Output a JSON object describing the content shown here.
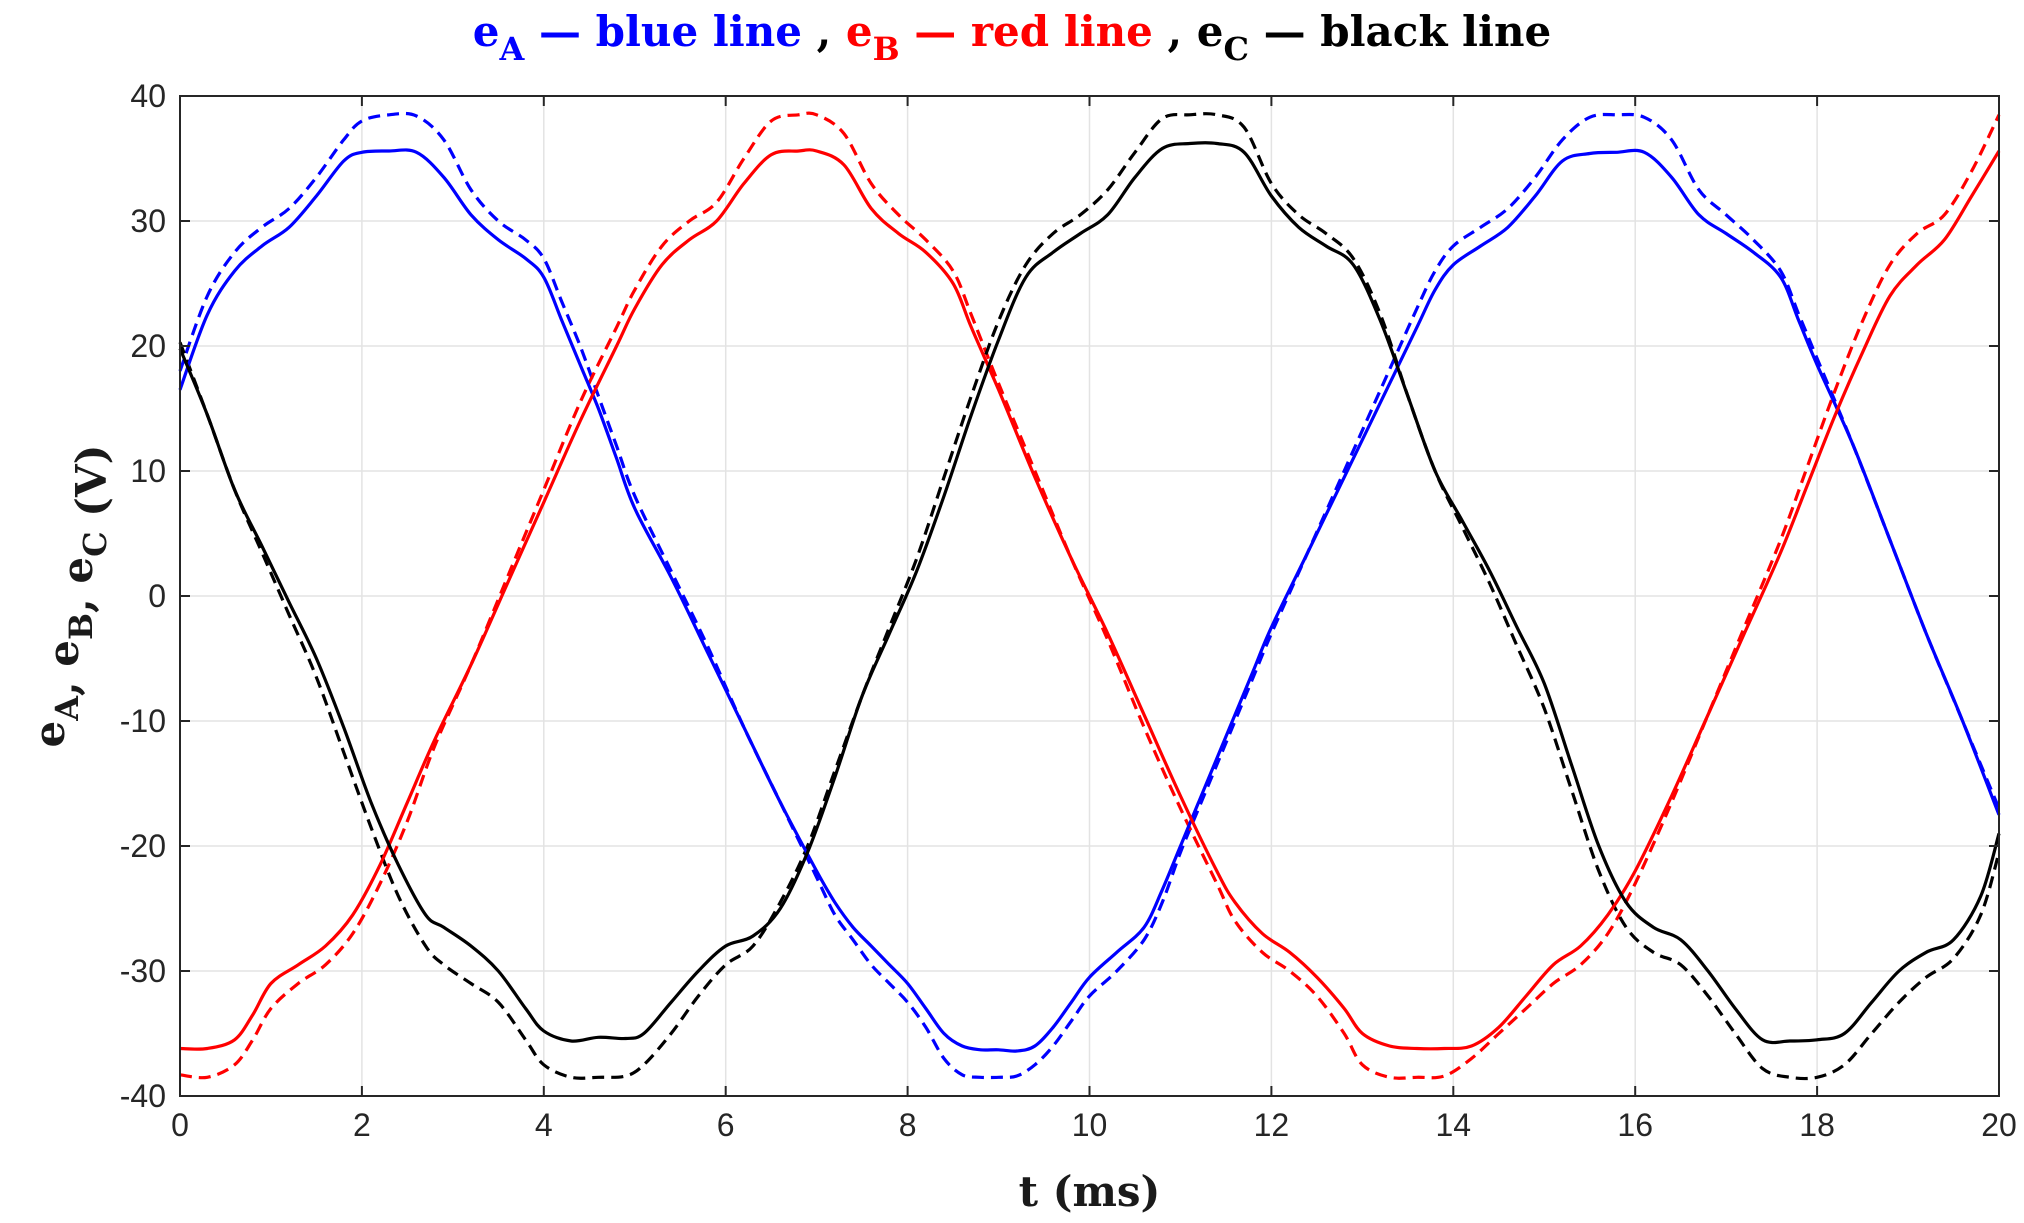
{
  "chart_data": {
    "type": "line",
    "title_parts": [
      {
        "text": "e",
        "sub": "A",
        "suffix": " — blue line",
        "color": "#0000ff"
      },
      {
        "sep": " , "
      },
      {
        "text": "e",
        "sub": "B",
        "suffix": " — red line",
        "color": "#ff0000"
      },
      {
        "sep": " , "
      },
      {
        "text": "e",
        "sub": "C",
        "suffix": " — black line",
        "color": "#000000"
      }
    ],
    "xlabel": "t (ms)",
    "ylabel_parts": [
      {
        "text": "e",
        "sub": "A"
      },
      {
        "sep": ", "
      },
      {
        "text": "e",
        "sub": "B"
      },
      {
        "sep": ", "
      },
      {
        "text": "e",
        "sub": "C"
      },
      {
        "sep": " (V)"
      }
    ],
    "xlim": [
      0,
      20
    ],
    "ylim": [
      -40,
      40
    ],
    "xticks": [
      0,
      2,
      4,
      6,
      8,
      10,
      12,
      14,
      16,
      18,
      20
    ],
    "yticks": [
      -40,
      -30,
      -20,
      -10,
      0,
      10,
      20,
      30,
      40
    ],
    "xtick_labels": [
      "0",
      "2",
      "4",
      "6",
      "8",
      "10",
      "12",
      "14",
      "16",
      "18",
      "20"
    ],
    "ytick_labels": [
      "-40",
      "-30",
      "-20",
      "-10",
      "0",
      "10",
      "20",
      "30",
      "40"
    ],
    "grid": true,
    "series": [
      {
        "phase": "A",
        "style": "solid",
        "color": "#0000ff",
        "x": [
          0,
          0.3,
          0.6,
          0.9,
          1.2,
          1.5,
          1.8,
          2.0,
          2.3,
          2.6,
          2.9,
          3.2,
          3.5,
          3.8,
          4.0,
          4.2,
          4.4,
          4.6,
          4.8,
          5.0,
          5.4,
          5.8,
          6.2,
          6.6,
          7.0,
          7.2,
          7.4,
          7.6,
          7.8,
          8.0,
          8.2,
          8.4,
          8.6,
          8.8,
          9.0,
          9.2,
          9.4,
          9.6,
          9.8,
          10.0,
          10.3,
          10.6,
          10.8,
          11.0,
          11.2,
          11.4,
          11.6,
          11.8,
          12.0,
          12.4,
          12.8,
          13.2,
          13.6,
          13.8,
          14.0,
          14.3,
          14.6,
          14.9,
          15.2,
          15.5,
          15.8,
          16.1,
          16.4,
          16.7,
          17.0,
          17.3,
          17.6,
          17.8,
          18.0,
          18.4,
          18.8,
          19.2,
          19.6,
          20.0
        ],
        "y": [
          16.5,
          22.5,
          26.0,
          28.0,
          29.5,
          32.0,
          34.8,
          35.5,
          35.6,
          35.5,
          33.5,
          30.5,
          28.5,
          27.0,
          25.5,
          22.0,
          18.5,
          15.0,
          11.0,
          7.0,
          1.5,
          -4.5,
          -10.5,
          -16.5,
          -22.0,
          -24.5,
          -26.5,
          -28.0,
          -29.5,
          -31.0,
          -33.0,
          -35.0,
          -36.0,
          -36.3,
          -36.3,
          -36.4,
          -36.0,
          -34.5,
          -32.5,
          -30.5,
          -28.5,
          -26.5,
          -23.5,
          -20.0,
          -16.5,
          -13.0,
          -9.5,
          -6.0,
          -2.5,
          3.5,
          9.5,
          15.5,
          21.5,
          24.5,
          26.5,
          28.0,
          29.5,
          32.0,
          34.8,
          35.4,
          35.5,
          35.5,
          33.5,
          30.5,
          29.0,
          27.5,
          25.5,
          22.0,
          18.5,
          12.0,
          4.5,
          -3.0,
          -10.0,
          -17.5
        ]
      },
      {
        "phase": "A",
        "style": "dashed",
        "color": "#0000ff",
        "x": [
          0,
          0.3,
          0.6,
          0.9,
          1.2,
          1.5,
          1.8,
          2.0,
          2.3,
          2.6,
          2.9,
          3.2,
          3.5,
          3.8,
          4.0,
          4.2,
          4.4,
          4.6,
          4.8,
          5.0,
          5.4,
          5.8,
          6.2,
          6.6,
          7.0,
          7.2,
          7.4,
          7.6,
          7.8,
          8.0,
          8.2,
          8.4,
          8.6,
          8.8,
          9.0,
          9.2,
          9.4,
          9.6,
          9.8,
          10.0,
          10.3,
          10.6,
          10.8,
          11.0,
          11.2,
          11.4,
          11.6,
          11.8,
          12.0,
          12.4,
          12.8,
          13.2,
          13.6,
          13.8,
          14.0,
          14.3,
          14.6,
          14.9,
          15.2,
          15.5,
          15.8,
          16.1,
          16.4,
          16.7,
          17.0,
          17.3,
          17.6,
          17.8,
          18.0,
          18.4,
          18.8,
          19.2,
          19.6,
          20.0
        ],
        "y": [
          18.0,
          24.0,
          27.5,
          29.5,
          31.0,
          33.5,
          36.5,
          38.0,
          38.5,
          38.4,
          36.5,
          32.5,
          30.0,
          28.5,
          27.0,
          23.5,
          20.0,
          16.0,
          12.0,
          8.0,
          2.0,
          -4.0,
          -10.5,
          -16.5,
          -22.5,
          -25.5,
          -27.5,
          -29.5,
          -31.0,
          -32.5,
          -34.5,
          -37.0,
          -38.3,
          -38.5,
          -38.5,
          -38.4,
          -37.5,
          -36.0,
          -34.0,
          -32.0,
          -30.0,
          -27.5,
          -24.5,
          -20.5,
          -17.0,
          -13.5,
          -10.0,
          -6.5,
          -3.0,
          3.5,
          10.0,
          16.5,
          23.0,
          26.0,
          28.0,
          29.5,
          31.0,
          33.5,
          36.5,
          38.3,
          38.5,
          38.3,
          36.5,
          32.5,
          30.5,
          28.5,
          26.0,
          22.5,
          19.0,
          12.0,
          4.5,
          -3.0,
          -10.0,
          -17.0
        ]
      },
      {
        "phase": "B",
        "style": "solid",
        "color": "#ff0000",
        "x": [
          0,
          0.3,
          0.6,
          0.8,
          1.0,
          1.3,
          1.6,
          1.9,
          2.2,
          2.5,
          2.8,
          3.2,
          3.6,
          4.0,
          4.4,
          4.8,
          5.0,
          5.3,
          5.6,
          5.9,
          6.2,
          6.5,
          6.8,
          7.0,
          7.3,
          7.6,
          7.9,
          8.2,
          8.5,
          8.7,
          9.0,
          9.4,
          9.8,
          10.2,
          10.6,
          11.0,
          11.4,
          11.6,
          11.9,
          12.2,
          12.5,
          12.8,
          13.0,
          13.3,
          13.6,
          13.9,
          14.2,
          14.5,
          14.8,
          15.1,
          15.4,
          15.7,
          16.0,
          16.4,
          16.8,
          17.2,
          17.6,
          17.9,
          18.2,
          18.5,
          18.8,
          19.1,
          19.4,
          19.7,
          20.0
        ],
        "y": [
          -36.2,
          -36.2,
          -35.5,
          -33.5,
          -31.0,
          -29.5,
          -28.0,
          -25.5,
          -21.5,
          -16.5,
          -11.5,
          -5.5,
          1.0,
          7.5,
          14.0,
          20.0,
          23.0,
          26.5,
          28.5,
          30.0,
          33.0,
          35.3,
          35.6,
          35.6,
          34.5,
          31.0,
          29.0,
          27.5,
          25.0,
          21.5,
          16.5,
          9.5,
          3.0,
          -3.0,
          -9.5,
          -16.0,
          -22.0,
          -24.5,
          -27.0,
          -28.5,
          -30.5,
          -33.0,
          -35.0,
          -36.0,
          -36.2,
          -36.2,
          -36.0,
          -34.5,
          -32.0,
          -29.5,
          -28.0,
          -25.5,
          -22.0,
          -16.0,
          -9.5,
          -3.0,
          3.5,
          9.0,
          14.5,
          19.5,
          24.0,
          26.5,
          28.5,
          32.0,
          35.6
        ]
      },
      {
        "phase": "B",
        "style": "dashed",
        "color": "#ff0000",
        "x": [
          0,
          0.3,
          0.6,
          0.8,
          1.0,
          1.3,
          1.6,
          1.9,
          2.2,
          2.5,
          2.8,
          3.2,
          3.6,
          4.0,
          4.4,
          4.8,
          5.0,
          5.3,
          5.6,
          5.9,
          6.2,
          6.5,
          6.8,
          7.0,
          7.3,
          7.6,
          7.9,
          8.2,
          8.5,
          8.7,
          9.0,
          9.4,
          9.8,
          10.2,
          10.6,
          11.0,
          11.4,
          11.6,
          11.9,
          12.2,
          12.5,
          12.8,
          13.0,
          13.3,
          13.6,
          13.9,
          14.2,
          14.5,
          14.8,
          15.1,
          15.4,
          15.7,
          16.0,
          16.4,
          16.8,
          17.2,
          17.6,
          17.9,
          18.2,
          18.5,
          18.8,
          19.1,
          19.4,
          19.7,
          20.0
        ],
        "y": [
          -38.3,
          -38.5,
          -37.5,
          -35.5,
          -33.0,
          -31.0,
          -29.5,
          -27.0,
          -23.0,
          -18.0,
          -12.0,
          -5.5,
          1.5,
          8.5,
          15.5,
          21.5,
          24.5,
          28.0,
          30.0,
          31.5,
          35.0,
          38.0,
          38.5,
          38.5,
          37.0,
          33.0,
          30.5,
          28.5,
          26.0,
          22.5,
          17.0,
          10.0,
          3.0,
          -3.5,
          -10.5,
          -17.0,
          -23.0,
          -26.0,
          -28.5,
          -30.0,
          -32.0,
          -35.0,
          -37.5,
          -38.5,
          -38.5,
          -38.4,
          -37.0,
          -35.0,
          -33.0,
          -31.0,
          -29.5,
          -27.0,
          -23.0,
          -16.5,
          -9.5,
          -2.5,
          4.5,
          10.5,
          16.5,
          22.0,
          26.5,
          29.0,
          30.5,
          34.0,
          38.5
        ]
      },
      {
        "phase": "C",
        "style": "solid",
        "color": "#000000",
        "x": [
          0,
          0.3,
          0.6,
          0.9,
          1.2,
          1.5,
          1.8,
          2.1,
          2.4,
          2.7,
          2.9,
          3.2,
          3.5,
          3.8,
          4.0,
          4.3,
          4.6,
          4.9,
          5.1,
          5.4,
          5.7,
          6.0,
          6.3,
          6.6,
          6.9,
          7.2,
          7.5,
          7.8,
          8.1,
          8.4,
          8.7,
          9.0,
          9.3,
          9.6,
          9.9,
          10.2,
          10.5,
          10.8,
          11.1,
          11.4,
          11.7,
          12.0,
          12.3,
          12.6,
          12.9,
          13.2,
          13.5,
          13.8,
          14.1,
          14.4,
          14.7,
          15.0,
          15.3,
          15.6,
          15.9,
          16.2,
          16.5,
          16.8,
          17.1,
          17.4,
          17.7,
          18.0,
          18.3,
          18.6,
          18.9,
          19.2,
          19.5,
          19.8,
          20.0
        ],
        "y": [
          19.8,
          14.5,
          8.5,
          4.0,
          -0.5,
          -5.0,
          -10.5,
          -16.5,
          -21.5,
          -25.5,
          -26.5,
          -28.0,
          -30.0,
          -33.0,
          -34.8,
          -35.6,
          -35.3,
          -35.4,
          -35.0,
          -32.5,
          -30.0,
          -28.0,
          -27.2,
          -25.0,
          -20.5,
          -14.5,
          -8.0,
          -3.0,
          2.0,
          8.0,
          14.5,
          20.5,
          25.5,
          27.5,
          29.0,
          30.5,
          33.5,
          35.8,
          36.2,
          36.2,
          35.5,
          32.0,
          29.5,
          28.0,
          26.5,
          22.0,
          16.0,
          10.0,
          6.0,
          2.0,
          -2.5,
          -7.0,
          -13.5,
          -20.0,
          -24.5,
          -26.5,
          -27.5,
          -30.0,
          -33.0,
          -35.5,
          -35.6,
          -35.5,
          -35.0,
          -32.5,
          -30.0,
          -28.5,
          -27.5,
          -24.0,
          -19.0
        ]
      },
      {
        "phase": "C",
        "style": "dashed",
        "color": "#000000",
        "x": [
          0,
          0.3,
          0.6,
          0.9,
          1.2,
          1.5,
          1.8,
          2.1,
          2.4,
          2.7,
          2.9,
          3.2,
          3.5,
          3.8,
          4.0,
          4.3,
          4.6,
          4.9,
          5.1,
          5.4,
          5.7,
          6.0,
          6.3,
          6.6,
          6.9,
          7.2,
          7.5,
          7.8,
          8.1,
          8.4,
          8.7,
          9.0,
          9.3,
          9.6,
          9.9,
          10.2,
          10.5,
          10.8,
          11.1,
          11.4,
          11.7,
          12.0,
          12.3,
          12.6,
          12.9,
          13.2,
          13.5,
          13.8,
          14.1,
          14.4,
          14.7,
          15.0,
          15.3,
          15.6,
          15.9,
          16.2,
          16.5,
          16.8,
          17.1,
          17.4,
          17.7,
          18.0,
          18.3,
          18.6,
          18.9,
          19.2,
          19.5,
          19.8,
          20.0
        ],
        "y": [
          20.3,
          14.5,
          8.5,
          3.5,
          -1.5,
          -6.5,
          -12.5,
          -18.5,
          -24.0,
          -28.0,
          -29.5,
          -31.0,
          -32.5,
          -35.5,
          -37.5,
          -38.5,
          -38.5,
          -38.4,
          -37.5,
          -35.0,
          -32.0,
          -29.5,
          -28.0,
          -24.5,
          -20.0,
          -14.0,
          -8.0,
          -2.5,
          3.0,
          9.5,
          16.0,
          22.0,
          26.5,
          29.0,
          30.5,
          32.5,
          35.5,
          38.2,
          38.5,
          38.5,
          37.5,
          33.0,
          30.5,
          29.0,
          27.0,
          22.5,
          16.0,
          10.0,
          5.5,
          1.0,
          -4.0,
          -9.0,
          -15.5,
          -22.0,
          -26.5,
          -28.5,
          -29.5,
          -32.0,
          -35.0,
          -37.8,
          -38.5,
          -38.5,
          -37.5,
          -35.0,
          -32.5,
          -30.5,
          -29.0,
          -25.5,
          -20.5
        ]
      }
    ]
  }
}
